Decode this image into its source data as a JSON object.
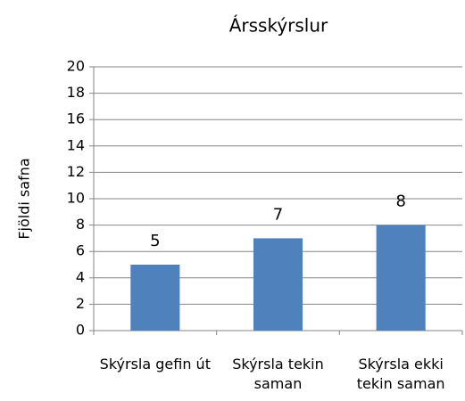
{
  "chart_data": {
    "type": "bar",
    "title": "Ársskýrslur",
    "y_label": "Fjöldi safna",
    "categories": [
      "Skýrsla gefin út",
      "Skýrsla tekin saman",
      "Skýrsla ekki tekin saman"
    ],
    "values": [
      5,
      7,
      8
    ],
    "color": "#4f81bd",
    "ylim": [
      0,
      20
    ],
    "yticks": [
      0,
      2,
      4,
      6,
      8,
      10,
      12,
      14,
      16,
      18,
      20
    ],
    "grid": true
  }
}
